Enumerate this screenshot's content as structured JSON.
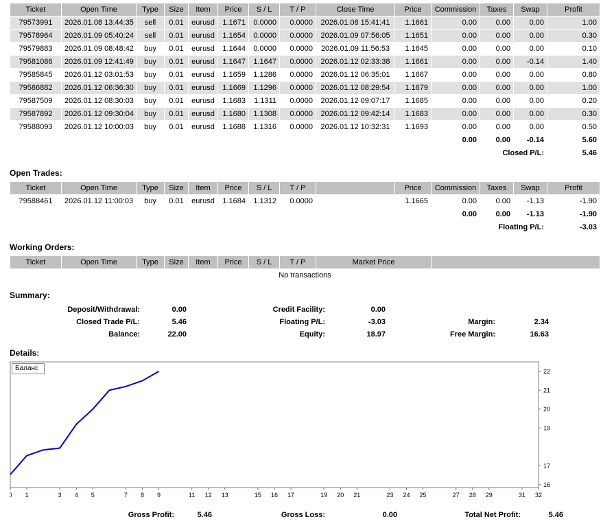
{
  "closed": {
    "headers": [
      "Ticket",
      "Open Time",
      "Type",
      "Size",
      "Item",
      "Price",
      "S / L",
      "T / P",
      "Close Time",
      "Price",
      "Commission",
      "Taxes",
      "Swap",
      "Profit"
    ],
    "rows": [
      [
        "79573991",
        "2026.01.08 13:44:35",
        "sell",
        "0.01",
        "eurusd",
        "1.1671",
        "0.0000",
        "0.0000",
        "2026.01.08 15:41:41",
        "1.1661",
        "0.00",
        "0.00",
        "0.00",
        "1.00"
      ],
      [
        "79578964",
        "2026.01.09 05:40:24",
        "sell",
        "0.01",
        "eurusd",
        "1.1654",
        "0.0000",
        "0.0000",
        "2026.01.09 07:56:05",
        "1.1651",
        "0.00",
        "0.00",
        "0.00",
        "0.30"
      ],
      [
        "79579883",
        "2026.01.09 08:48:42",
        "buy",
        "0.01",
        "eurusd",
        "1.1644",
        "0.0000",
        "0.0000",
        "2026.01.09 11:56:53",
        "1.1645",
        "0.00",
        "0.00",
        "0.00",
        "0.10"
      ],
      [
        "79581086",
        "2026.01.09 12:41:49",
        "buy",
        "0.01",
        "eurusd",
        "1.1647",
        "1.1647",
        "0.0000",
        "2026.01.12 02:33:38",
        "1.1661",
        "0.00",
        "0.00",
        "-0.14",
        "1.40"
      ],
      [
        "79585845",
        "2026.01.12 03:01:53",
        "buy",
        "0.01",
        "eurusd",
        "1.1659",
        "1.1286",
        "0.0000",
        "2026.01.12 06:35:01",
        "1.1667",
        "0.00",
        "0.00",
        "0.00",
        "0.80"
      ],
      [
        "79586882",
        "2026.01.12 06:36:30",
        "buy",
        "0.01",
        "eurusd",
        "1.1669",
        "1.1296",
        "0.0000",
        "2026.01.12 08:29:54",
        "1.1679",
        "0.00",
        "0.00",
        "0.00",
        "1.00"
      ],
      [
        "79587509",
        "2026.01.12 08:30:03",
        "buy",
        "0.01",
        "eurusd",
        "1.1683",
        "1.1311",
        "0.0000",
        "2026.01.12 09:07:17",
        "1.1685",
        "0.00",
        "0.00",
        "0.00",
        "0.20"
      ],
      [
        "79587892",
        "2026.01.12 09:30:04",
        "buy",
        "0.01",
        "eurusd",
        "1.1680",
        "1.1308",
        "0.0000",
        "2026.01.12 09:42:14",
        "1.1683",
        "0.00",
        "0.00",
        "0.00",
        "0.30"
      ],
      [
        "79588093",
        "2026.01.12 10:00:03",
        "buy",
        "0.01",
        "eurusd",
        "1.1688",
        "1.1316",
        "0.0000",
        "2026.01.12 10:32:31",
        "1.1693",
        "0.00",
        "0.00",
        "0.00",
        "0.50"
      ]
    ],
    "totals": [
      "0.00",
      "0.00",
      "-0.14",
      "5.60"
    ],
    "closed_pl_label": "Closed P/L:",
    "closed_pl_value": "5.46"
  },
  "open_trades": {
    "section_label": "Open Trades:",
    "headers": [
      "Ticket",
      "Open Time",
      "Type",
      "Size",
      "Item",
      "Price",
      "S / L",
      "T / P",
      "",
      "Price",
      "Commission",
      "Taxes",
      "Swap",
      "Profit"
    ],
    "rows": [
      [
        "79588461",
        "2026.01.12 11:00:03",
        "buy",
        "0.01",
        "eurusd",
        "1.1684",
        "1.1312",
        "0.0000",
        "",
        "1.1665",
        "0.00",
        "0.00",
        "-1.13",
        "-1.90"
      ]
    ],
    "totals": [
      "0.00",
      "0.00",
      "-1.13",
      "-1.90"
    ],
    "floating_pl_label": "Floating P/L:",
    "floating_pl_value": "-3.03"
  },
  "working_orders": {
    "section_label": "Working Orders:",
    "headers": [
      "Ticket",
      "Open Time",
      "Type",
      "Size",
      "Item",
      "Price",
      "S / L",
      "T / P",
      "Market Price"
    ],
    "empty_text": "No transactions"
  },
  "summary": {
    "section_label": "Summary:",
    "deposit_label": "Deposit/Withdrawal:",
    "deposit_value": "0.00",
    "credit_label": "Credit Facility:",
    "credit_value": "0.00",
    "closed_pl_label": "Closed Trade P/L:",
    "closed_pl_value": "5.46",
    "floating_label": "Floating P/L:",
    "floating_value": "-3.03",
    "margin_label": "Margin:",
    "margin_value": "2.34",
    "balance_label": "Balance:",
    "balance_value": "22.00",
    "equity_label": "Equity:",
    "equity_value": "18.97",
    "free_margin_label": "Free Margin:",
    "free_margin_value": "16.63"
  },
  "details": {
    "section_label": "Details:"
  },
  "chart_data": {
    "type": "line",
    "title": "",
    "legend": "Баланс",
    "series": [
      {
        "name": "Баланс",
        "x": [
          0,
          1,
          2,
          3,
          4,
          5,
          6,
          7,
          8,
          9
        ],
        "values": [
          16.54,
          17.54,
          17.84,
          17.94,
          19.2,
          20.0,
          21.0,
          21.2,
          21.5,
          22.0
        ]
      }
    ],
    "x_ticks": [
      0,
      1,
      3,
      4,
      5,
      7,
      8,
      9,
      11,
      12,
      13,
      15,
      16,
      17,
      19,
      20,
      21,
      23,
      24,
      25,
      27,
      28,
      29,
      31,
      32
    ],
    "y_ticks": [
      22,
      21,
      20,
      19,
      17,
      16
    ],
    "xlim": [
      0,
      32
    ],
    "ylim": [
      15.85,
      22.5
    ],
    "grid": false,
    "legend_position": "top-left",
    "line_color": "#0000cc"
  },
  "footer": {
    "gross_profit_label": "Gross Profit:",
    "gross_profit_value": "5.46",
    "gross_loss_label": "Gross Loss:",
    "gross_loss_value": "0.00",
    "total_net_profit_label": "Total Net Profit:",
    "total_net_profit_value": "5.46"
  }
}
